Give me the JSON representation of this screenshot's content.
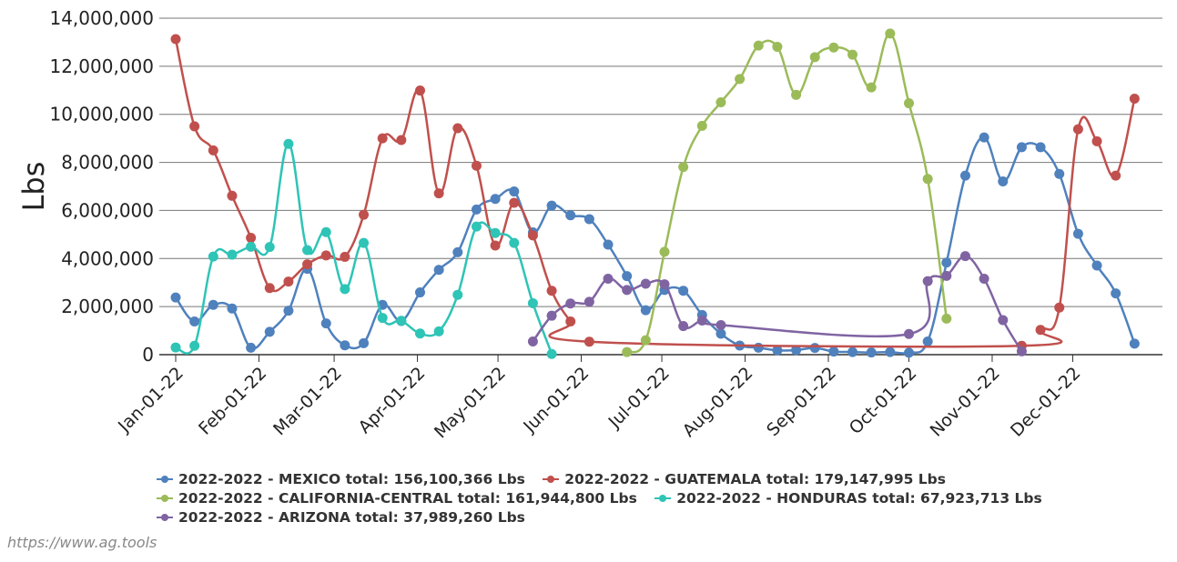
{
  "chart_data": {
    "type": "line",
    "ylabel": "Lbs",
    "ylim": [
      0,
      14000000
    ],
    "yticks": [
      0,
      2000000,
      4000000,
      6000000,
      8000000,
      10000000,
      12000000,
      14000000
    ],
    "ytick_labels": [
      "0",
      "2,000,000",
      "4,000,000",
      "6,000,000",
      "8,000,000",
      "10,000,000",
      "12,000,000",
      "14,000,000"
    ],
    "xlim_day": [
      0,
      364
    ],
    "xticks": [
      {
        "label": "Jan-01-22",
        "day": 0
      },
      {
        "label": "Feb-01-22",
        "day": 31
      },
      {
        "label": "Mar-01-22",
        "day": 59
      },
      {
        "label": "Apr-01-22",
        "day": 90
      },
      {
        "label": "May-01-22",
        "day": 120
      },
      {
        "label": "Jun-01-22",
        "day": 151
      },
      {
        "label": "Jul-01-22",
        "day": 181
      },
      {
        "label": "Aug-01-22",
        "day": 212
      },
      {
        "label": "Sep-01-22",
        "day": 243
      },
      {
        "label": "Oct-01-22",
        "day": 273
      },
      {
        "label": "Nov-01-22",
        "day": 304
      },
      {
        "label": "Dec-01-22",
        "day": 334
      }
    ],
    "grid": true,
    "legend_position": "bottom",
    "series": [
      {
        "name": "2022-2022 - MEXICO total: 156,100,366 Lbs",
        "color": "#4f81bd",
        "x": [
          0,
          7,
          14,
          21,
          28,
          35,
          42,
          49,
          56,
          63,
          70,
          77,
          84,
          91,
          98,
          105,
          112,
          119,
          126,
          133,
          140,
          147,
          154,
          161,
          168,
          175,
          182,
          189,
          196,
          203,
          210,
          217,
          224,
          231,
          238,
          245,
          252,
          259,
          266,
          273,
          280,
          287,
          294,
          301,
          308,
          315,
          322,
          329,
          336,
          343,
          350,
          357
        ],
        "values": [
          2380000,
          1380000,
          2070000,
          1920000,
          290000,
          950000,
          1830000,
          3570000,
          1300000,
          390000,
          480000,
          2070000,
          1400000,
          2590000,
          3530000,
          4260000,
          6040000,
          6480000,
          6790000,
          5090000,
          6200000,
          5800000,
          5640000,
          4580000,
          3270000,
          1850000,
          2690000,
          2660000,
          1650000,
          870000,
          380000,
          290000,
          180000,
          190000,
          280000,
          130000,
          110000,
          90000,
          110000,
          80000,
          550000,
          3830000,
          7450000,
          9040000,
          7210000,
          8630000,
          8630000,
          7520000,
          5030000,
          3710000,
          2550000,
          460000
        ]
      },
      {
        "name": "2022-2022 - GUATEMALA total: 179,147,995 Lbs",
        "color": "#c0504d",
        "x": [
          0,
          7,
          14,
          21,
          28,
          35,
          42,
          49,
          56,
          63,
          70,
          77,
          84,
          91,
          98,
          105,
          112,
          119,
          126,
          133,
          140,
          147,
          154,
          315,
          322,
          329,
          336,
          343,
          350,
          357
        ],
        "values": [
          13130000,
          9500000,
          8500000,
          6610000,
          4860000,
          2770000,
          3040000,
          3760000,
          4130000,
          4070000,
          5820000,
          9000000,
          8930000,
          10990000,
          6710000,
          9420000,
          7860000,
          4540000,
          6320000,
          4960000,
          2660000,
          1380000,
          540000,
          370000,
          1030000,
          1960000,
          9380000,
          8880000,
          7450000,
          10650000
        ]
      },
      {
        "name": "2022-2022 - CALIFORNIA-CENTRAL total: 161,944,800 Lbs",
        "color": "#9bbb59",
        "x": [
          168,
          175,
          182,
          189,
          196,
          203,
          210,
          217,
          224,
          231,
          238,
          245,
          252,
          259,
          266,
          273,
          280,
          287
        ],
        "values": [
          110000,
          600000,
          4280000,
          7810000,
          9520000,
          10500000,
          11470000,
          12860000,
          12810000,
          10810000,
          12380000,
          12780000,
          12480000,
          11120000,
          13360000,
          10460000,
          7310000,
          1500000
        ]
      },
      {
        "name": "2022-2022 - HONDURAS total: 67,923,713 Lbs",
        "color": "#2ec4b6",
        "x": [
          0,
          7,
          14,
          21,
          28,
          35,
          42,
          49,
          56,
          63,
          70,
          77,
          84,
          91,
          98,
          105,
          112,
          119,
          126,
          133,
          140
        ],
        "values": [
          300000,
          370000,
          4080000,
          4160000,
          4490000,
          4480000,
          8770000,
          4350000,
          5100000,
          2730000,
          4650000,
          1530000,
          1410000,
          880000,
          970000,
          2490000,
          5330000,
          5060000,
          4650000,
          2140000,
          30000
        ]
      },
      {
        "name": "2022-2022 - ARIZONA total: 37,989,260 Lbs",
        "color": "#8064a2",
        "x": [
          133,
          140,
          147,
          154,
          161,
          168,
          175,
          182,
          189,
          196,
          203,
          273,
          280,
          287,
          294,
          301,
          308,
          315
        ],
        "values": [
          550000,
          1620000,
          2130000,
          2200000,
          3160000,
          2690000,
          2950000,
          2930000,
          1190000,
          1420000,
          1230000,
          860000,
          3060000,
          3280000,
          4100000,
          3160000,
          1440000,
          140000
        ]
      }
    ]
  },
  "credit": "https://www.ag.tools"
}
